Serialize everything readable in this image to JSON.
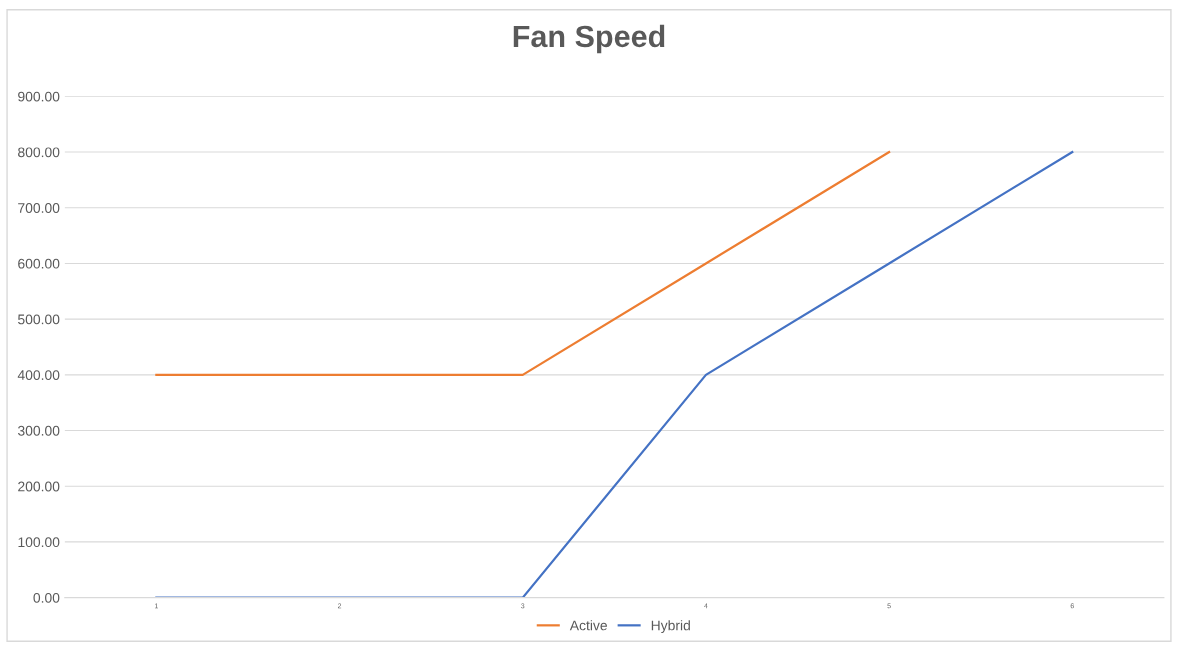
{
  "chart_data": {
    "type": "line",
    "title": "Fan Speed",
    "categories": [
      "1",
      "2",
      "3",
      "4",
      "5",
      "6"
    ],
    "series": [
      {
        "name": "Active",
        "color": "#ed7d31",
        "values": [
          400,
          400,
          400,
          600,
          800,
          null
        ]
      },
      {
        "name": "Hybrid",
        "color": "#4472c4",
        "values": [
          0,
          0,
          0,
          400,
          600,
          800
        ]
      }
    ],
    "ylim": [
      0,
      900
    ],
    "yticks": [
      {
        "value": 0,
        "label": "0.00"
      },
      {
        "value": 100,
        "label": "100.00"
      },
      {
        "value": 200,
        "label": "200.00"
      },
      {
        "value": 300,
        "label": "300.00"
      },
      {
        "value": 400,
        "label": "400.00"
      },
      {
        "value": 500,
        "label": "500.00"
      },
      {
        "value": 600,
        "label": "600.00"
      },
      {
        "value": 700,
        "label": "700.00"
      },
      {
        "value": 800,
        "label": "800.00"
      },
      {
        "value": 900,
        "label": "900.00"
      }
    ],
    "grid": "y",
    "legend": "bottom",
    "marker": "none",
    "line_style": "solid"
  }
}
